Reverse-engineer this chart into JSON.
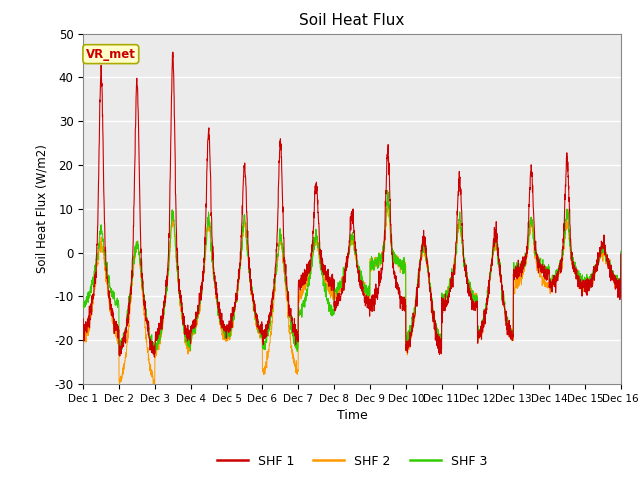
{
  "title": "Soil Heat Flux",
  "ylabel": "Soil Heat Flux (W/m2)",
  "xlabel": "Time",
  "ylim": [
    -30,
    50
  ],
  "xlim_days": 15,
  "colors": {
    "SHF 1": "#cc0000",
    "SHF 2": "#ff9900",
    "SHF 3": "#33cc00"
  },
  "background_color": "#ebebeb",
  "legend_label": "VR_met",
  "xtick_labels": [
    "Dec 1",
    "Dec 2",
    "Dec 3",
    "Dec 4",
    "Dec 5",
    "Dec 6",
    "Dec 7",
    "Dec 8",
    "Dec 9",
    "Dec 10",
    "Dec 11",
    "Dec 12",
    "Dec 13",
    "Dec 14",
    "Dec 15",
    "Dec 16"
  ],
  "ytick_values": [
    -30,
    -20,
    -10,
    0,
    10,
    20,
    30,
    40,
    50
  ],
  "n_points": 2880,
  "seed": 7
}
